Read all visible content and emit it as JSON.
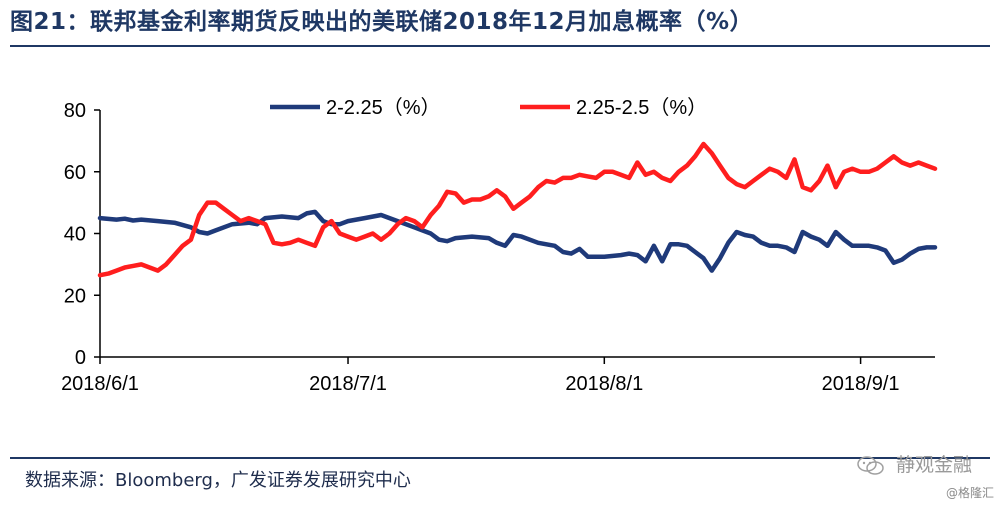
{
  "title": "图21：联邦基金利率期货反映出的美联储2018年12月加息概率（%）",
  "source": "数据来源：Bloomberg，广发证券发展研究中心",
  "watermark": "静观金融",
  "credit": "@格隆汇",
  "chart_data": {
    "type": "line",
    "title": "联邦基金利率期货反映出的美联储2018年12月加息概率（%）",
    "xlabel": "",
    "ylabel": "",
    "ylim": [
      0,
      80
    ],
    "yticks": [
      0,
      20,
      40,
      60,
      80
    ],
    "xlim": [
      0,
      101
    ],
    "xticks": [
      {
        "x": 0,
        "label": "2018/6/1"
      },
      {
        "x": 30,
        "label": "2018/7/1"
      },
      {
        "x": 61,
        "label": "2018/8/1"
      },
      {
        "x": 92,
        "label": "2018/9/1"
      }
    ],
    "grid": false,
    "legend": "top",
    "x_unit": "days since 2018/6/1",
    "series": [
      {
        "name": "2-2.25（%）",
        "color": "#1f3a7a",
        "points": [
          [
            0,
            45
          ],
          [
            2,
            44.5
          ],
          [
            3,
            44.8
          ],
          [
            4,
            44.2
          ],
          [
            5,
            44.5
          ],
          [
            7,
            44
          ],
          [
            9,
            43.5
          ],
          [
            11,
            42
          ],
          [
            12,
            40.5
          ],
          [
            13,
            40
          ],
          [
            14,
            41
          ],
          [
            16,
            43
          ],
          [
            18,
            43.5
          ],
          [
            19,
            43
          ],
          [
            20,
            45
          ],
          [
            22,
            45.5
          ],
          [
            24,
            45
          ],
          [
            25,
            46.5
          ],
          [
            26,
            47
          ],
          [
            27,
            44
          ],
          [
            28,
            43
          ],
          [
            29,
            43
          ],
          [
            30,
            44
          ],
          [
            32,
            45
          ],
          [
            34,
            46
          ],
          [
            36,
            44
          ],
          [
            38,
            42
          ],
          [
            39,
            41
          ],
          [
            40,
            40
          ],
          [
            41,
            38
          ],
          [
            42,
            37.5
          ],
          [
            43,
            38.5
          ],
          [
            45,
            39
          ],
          [
            47,
            38.5
          ],
          [
            48,
            37
          ],
          [
            49,
            36
          ],
          [
            50,
            39.5
          ],
          [
            51,
            39
          ],
          [
            53,
            37
          ],
          [
            55,
            36
          ],
          [
            56,
            34
          ],
          [
            57,
            33.5
          ],
          [
            58,
            35
          ],
          [
            59,
            32.5
          ],
          [
            61,
            32.5
          ],
          [
            63,
            33
          ],
          [
            64,
            33.5
          ],
          [
            65,
            33
          ],
          [
            66,
            31
          ],
          [
            67,
            36
          ],
          [
            68,
            31
          ],
          [
            69,
            36.5
          ],
          [
            70,
            36.5
          ],
          [
            71,
            36
          ],
          [
            72,
            34
          ],
          [
            73,
            32
          ],
          [
            74,
            28
          ],
          [
            75,
            32
          ],
          [
            76,
            37
          ],
          [
            77,
            40.5
          ],
          [
            78,
            39.5
          ],
          [
            79,
            39
          ],
          [
            80,
            37
          ],
          [
            81,
            36
          ],
          [
            82,
            36
          ],
          [
            83,
            35.5
          ],
          [
            84,
            34
          ],
          [
            85,
            40.5
          ],
          [
            86,
            39
          ],
          [
            87,
            38
          ],
          [
            88,
            36
          ],
          [
            89,
            40.5
          ],
          [
            90,
            38
          ],
          [
            91,
            36
          ],
          [
            93,
            36
          ],
          [
            94,
            35.5
          ],
          [
            95,
            34.5
          ],
          [
            96,
            30.5
          ],
          [
            97,
            31.5
          ],
          [
            98,
            33.5
          ],
          [
            99,
            35
          ],
          [
            100,
            35.5
          ],
          [
            101,
            35.5
          ]
        ]
      },
      {
        "name": "2.25-2.5（%）",
        "color": "#ff1e1e",
        "points": [
          [
            0,
            26.5
          ],
          [
            1,
            27
          ],
          [
            2,
            28
          ],
          [
            3,
            29
          ],
          [
            4,
            29.5
          ],
          [
            5,
            30
          ],
          [
            6,
            29
          ],
          [
            7,
            28
          ],
          [
            8,
            30
          ],
          [
            9,
            33
          ],
          [
            10,
            36
          ],
          [
            11,
            38
          ],
          [
            12,
            46
          ],
          [
            13,
            50
          ],
          [
            14,
            50
          ],
          [
            15,
            48
          ],
          [
            16,
            46
          ],
          [
            17,
            44
          ],
          [
            18,
            45
          ],
          [
            19,
            44
          ],
          [
            20,
            43
          ],
          [
            21,
            37
          ],
          [
            22,
            36.5
          ],
          [
            23,
            37
          ],
          [
            24,
            38
          ],
          [
            25,
            37
          ],
          [
            26,
            36
          ],
          [
            27,
            42
          ],
          [
            28,
            44
          ],
          [
            29,
            40
          ],
          [
            30,
            39
          ],
          [
            31,
            38
          ],
          [
            32,
            39
          ],
          [
            33,
            40
          ],
          [
            34,
            38
          ],
          [
            35,
            40
          ],
          [
            36,
            43
          ],
          [
            37,
            45
          ],
          [
            38,
            44
          ],
          [
            39,
            42
          ],
          [
            40,
            46
          ],
          [
            41,
            49
          ],
          [
            42,
            53.5
          ],
          [
            43,
            53
          ],
          [
            44,
            50
          ],
          [
            45,
            51
          ],
          [
            46,
            51
          ],
          [
            47,
            52
          ],
          [
            48,
            54
          ],
          [
            49,
            52
          ],
          [
            50,
            48
          ],
          [
            51,
            50
          ],
          [
            52,
            52
          ],
          [
            53,
            55
          ],
          [
            54,
            57
          ],
          [
            55,
            56.5
          ],
          [
            56,
            58
          ],
          [
            57,
            58
          ],
          [
            58,
            59
          ],
          [
            59,
            58.5
          ],
          [
            60,
            58
          ],
          [
            61,
            60
          ],
          [
            62,
            60
          ],
          [
            63,
            59
          ],
          [
            64,
            58
          ],
          [
            65,
            63
          ],
          [
            66,
            59
          ],
          [
            67,
            60
          ],
          [
            68,
            58
          ],
          [
            69,
            57
          ],
          [
            70,
            60
          ],
          [
            71,
            62
          ],
          [
            72,
            65
          ],
          [
            73,
            69
          ],
          [
            74,
            66
          ],
          [
            75,
            62
          ],
          [
            76,
            58
          ],
          [
            77,
            56
          ],
          [
            78,
            55
          ],
          [
            79,
            57
          ],
          [
            80,
            59
          ],
          [
            81,
            61
          ],
          [
            82,
            60
          ],
          [
            83,
            58
          ],
          [
            84,
            64
          ],
          [
            85,
            55
          ],
          [
            86,
            54
          ],
          [
            87,
            57
          ],
          [
            88,
            62
          ],
          [
            89,
            55
          ],
          [
            90,
            60
          ],
          [
            91,
            61
          ],
          [
            92,
            60
          ],
          [
            93,
            60
          ],
          [
            94,
            61
          ],
          [
            95,
            63
          ],
          [
            96,
            65
          ],
          [
            97,
            63
          ],
          [
            98,
            62
          ],
          [
            99,
            63
          ],
          [
            100,
            62
          ],
          [
            101,
            61
          ]
        ]
      }
    ]
  }
}
